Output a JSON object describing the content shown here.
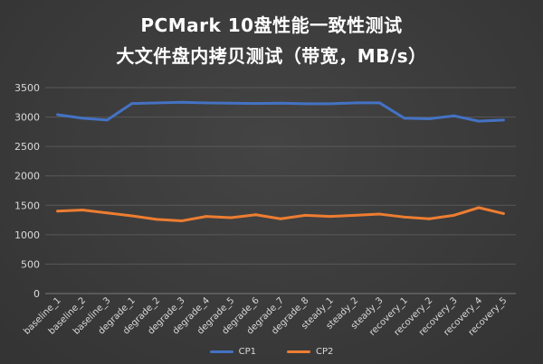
{
  "chart_data": {
    "type": "line",
    "title": "PCMark 10盘性能一致性测试",
    "subtitle": "大文件盘内拷贝测试（带宽，MB/s）",
    "xlabel": "",
    "ylabel": "",
    "ylim": [
      0,
      3500
    ],
    "yticks": [
      0,
      500,
      1000,
      1500,
      2000,
      2500,
      3000,
      3500
    ],
    "grid": true,
    "legend_position": "bottom",
    "categories": [
      "baseline_1",
      "baseline_2",
      "baseline_3",
      "degrade_1",
      "degrade_2",
      "degrade_3",
      "degrade_4",
      "degrade_5",
      "degrade_6",
      "degrade_7",
      "degrade_8",
      "steady_1",
      "steady_2",
      "steady_3",
      "recovery_1",
      "recovery_2",
      "recovery_3",
      "recovery_4",
      "recovery_5"
    ],
    "series": [
      {
        "name": "CP1",
        "color": "#4472c4",
        "values": [
          3040,
          2980,
          2950,
          3230,
          3240,
          3250,
          3240,
          3235,
          3230,
          3235,
          3225,
          3225,
          3240,
          3240,
          2980,
          2970,
          3020,
          2930,
          2950
        ]
      },
      {
        "name": "CP2",
        "color": "#ed7d31",
        "values": [
          1400,
          1420,
          1370,
          1320,
          1260,
          1235,
          1310,
          1290,
          1340,
          1270,
          1330,
          1310,
          1330,
          1350,
          1300,
          1270,
          1330,
          1460,
          1360
        ]
      }
    ]
  }
}
